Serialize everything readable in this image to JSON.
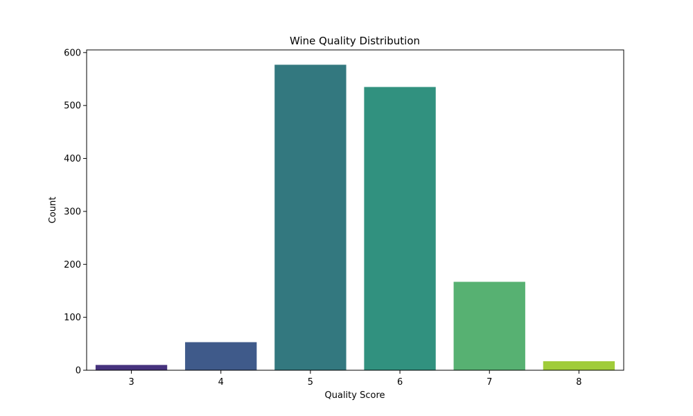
{
  "chart_data": {
    "type": "bar",
    "title": "Wine Quality Distribution",
    "xlabel": "Quality Score",
    "ylabel": "Count",
    "categories": [
      "3",
      "4",
      "5",
      "6",
      "7",
      "8"
    ],
    "values": [
      10,
      53,
      577,
      535,
      167,
      17
    ],
    "colors": [
      "#46327e",
      "#3f5a8a",
      "#33787f",
      "#31917f",
      "#57b172",
      "#a0cc3a"
    ],
    "ylim": [
      0,
      605
    ],
    "yticks": [
      0,
      100,
      200,
      300,
      400,
      500,
      600
    ],
    "grid": false,
    "legend": "none"
  }
}
